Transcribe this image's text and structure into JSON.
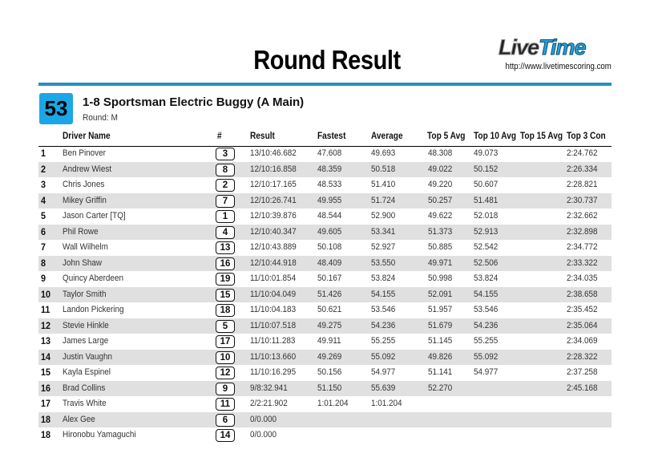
{
  "header": {
    "title": "Round Result",
    "logo_text": "LiveTime",
    "logo_url": "http://www.livetimescoring.com"
  },
  "race": {
    "number": "53",
    "name": "1-8 Sportsman Electric Buggy (A Main)",
    "round": "Round: M"
  },
  "colors": {
    "accent": "#2490bf",
    "badge": "#1ba6e6",
    "stripe": "#e0e0e0"
  },
  "columns": [
    "Driver Name",
    "#",
    "Result",
    "Fastest",
    "Average",
    "Top 5 Avg",
    "Top 10 Avg",
    "Top 15 Avg",
    "Top 3 Con"
  ],
  "rows": [
    {
      "pos": "1",
      "driver": "Ben Pinover",
      "num": "3",
      "result": "13/10:46.682",
      "fastest": "47.608",
      "average": "49.693",
      "top5": "48.308",
      "top10": "49.073",
      "top15": "",
      "top3con": "2:24.762"
    },
    {
      "pos": "2",
      "driver": "Andrew Wiest",
      "num": "8",
      "result": "12/10:16.858",
      "fastest": "48.359",
      "average": "50.518",
      "top5": "49.022",
      "top10": "50.152",
      "top15": "",
      "top3con": "2:26.334"
    },
    {
      "pos": "3",
      "driver": "Chris Jones",
      "num": "2",
      "result": "12/10:17.165",
      "fastest": "48.533",
      "average": "51.410",
      "top5": "49.220",
      "top10": "50.607",
      "top15": "",
      "top3con": "2:28.821"
    },
    {
      "pos": "4",
      "driver": "Mikey Griffin",
      "num": "7",
      "result": "12/10:26.741",
      "fastest": "49.955",
      "average": "51.724",
      "top5": "50.257",
      "top10": "51.481",
      "top15": "",
      "top3con": "2:30.737"
    },
    {
      "pos": "5",
      "driver": "Jason Carter [TQ]",
      "num": "1",
      "result": "12/10:39.876",
      "fastest": "48.544",
      "average": "52.900",
      "top5": "49.622",
      "top10": "52.018",
      "top15": "",
      "top3con": "2:32.662"
    },
    {
      "pos": "6",
      "driver": "Phil Rowe",
      "num": "4",
      "result": "12/10:40.347",
      "fastest": "49.605",
      "average": "53.341",
      "top5": "51.373",
      "top10": "52.913",
      "top15": "",
      "top3con": "2:32.898"
    },
    {
      "pos": "7",
      "driver": "Wall Wilhelm",
      "num": "13",
      "result": "12/10:43.889",
      "fastest": "50.108",
      "average": "52.927",
      "top5": "50.885",
      "top10": "52.542",
      "top15": "",
      "top3con": "2:34.772"
    },
    {
      "pos": "8",
      "driver": "John Shaw",
      "num": "16",
      "result": "12/10:44.918",
      "fastest": "48.409",
      "average": "53.550",
      "top5": "49.971",
      "top10": "52.506",
      "top15": "",
      "top3con": "2:33.322"
    },
    {
      "pos": "9",
      "driver": "Quincy Aberdeen",
      "num": "19",
      "result": "11/10:01.854",
      "fastest": "50.167",
      "average": "53.824",
      "top5": "50.998",
      "top10": "53.824",
      "top15": "",
      "top3con": "2:34.035"
    },
    {
      "pos": "10",
      "driver": "Taylor Smith",
      "num": "15",
      "result": "11/10:04.049",
      "fastest": "51.426",
      "average": "54.155",
      "top5": "52.091",
      "top10": "54.155",
      "top15": "",
      "top3con": "2:38.658"
    },
    {
      "pos": "11",
      "driver": "Landon Pickering",
      "num": "18",
      "result": "11/10:04.183",
      "fastest": "50.621",
      "average": "53.546",
      "top5": "51.957",
      "top10": "53.546",
      "top15": "",
      "top3con": "2:35.452"
    },
    {
      "pos": "12",
      "driver": "Stevie Hinkle",
      "num": "5",
      "result": "11/10:07.518",
      "fastest": "49.275",
      "average": "54.236",
      "top5": "51.679",
      "top10": "54.236",
      "top15": "",
      "top3con": "2:35.064"
    },
    {
      "pos": "13",
      "driver": "James Large",
      "num": "17",
      "result": "11/10:11.283",
      "fastest": "49.911",
      "average": "55.255",
      "top5": "51.145",
      "top10": "55.255",
      "top15": "",
      "top3con": "2:34.069"
    },
    {
      "pos": "14",
      "driver": "Justin Vaughn",
      "num": "10",
      "result": "11/10:13.660",
      "fastest": "49.269",
      "average": "55.092",
      "top5": "49.826",
      "top10": "55.092",
      "top15": "",
      "top3con": "2:28.322"
    },
    {
      "pos": "15",
      "driver": "Kayla Espinel",
      "num": "12",
      "result": "11/10:16.295",
      "fastest": "50.156",
      "average": "54.977",
      "top5": "51.141",
      "top10": "54.977",
      "top15": "",
      "top3con": "2:37.258"
    },
    {
      "pos": "16",
      "driver": "Brad Collins",
      "num": "9",
      "result": "9/8:32.941",
      "fastest": "51.150",
      "average": "55.639",
      "top5": "52.270",
      "top10": "",
      "top15": "",
      "top3con": "2:45.168"
    },
    {
      "pos": "17",
      "driver": "Travis White",
      "num": "11",
      "result": "2/2:21.902",
      "fastest": "1:01.204",
      "average": "1:01.204",
      "top5": "",
      "top10": "",
      "top15": "",
      "top3con": ""
    },
    {
      "pos": "18",
      "driver": "Alex Gee",
      "num": "6",
      "result": "0/0.000",
      "fastest": "",
      "average": "",
      "top5": "",
      "top10": "",
      "top15": "",
      "top3con": ""
    },
    {
      "pos": "18",
      "driver": "Hironobu Yamaguchi",
      "num": "14",
      "result": "0/0.000",
      "fastest": "",
      "average": "",
      "top5": "",
      "top10": "",
      "top15": "",
      "top3con": ""
    }
  ]
}
